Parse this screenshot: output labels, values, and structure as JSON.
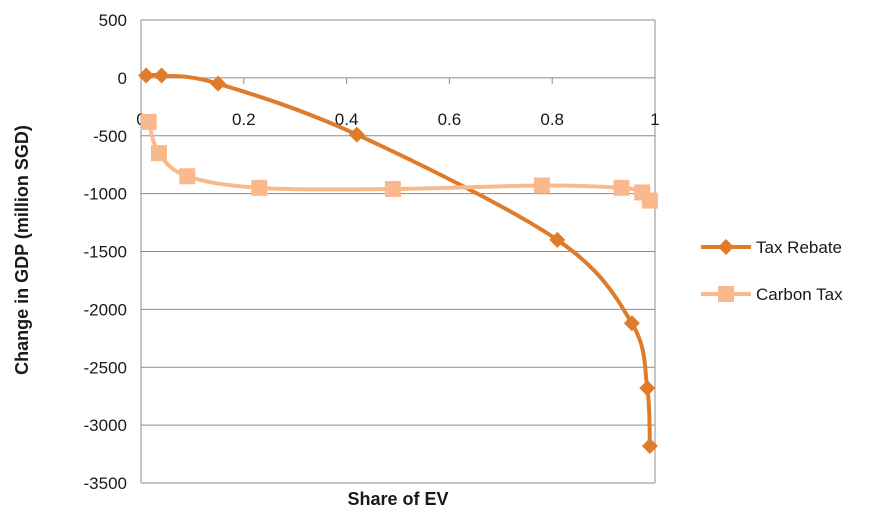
{
  "chart_data": {
    "type": "scatter",
    "xlabel": "Share of EV",
    "ylabel": "Change in GDP (million SGD)",
    "xlim": [
      0,
      1
    ],
    "ylim": [
      -3500,
      500
    ],
    "xticks": [
      "0",
      "0.2",
      "0.4",
      "0.6",
      "0.8",
      "1"
    ],
    "yticks": [
      "500",
      "0",
      "-500",
      "-1000",
      "-1500",
      "-2000",
      "-2500",
      "-3000",
      "-3500"
    ],
    "grid": "horizontal",
    "legend": "right",
    "series": [
      {
        "name": "Tax Rebate",
        "color": "#E07B2A",
        "marker": "diamond",
        "x": [
          0.01,
          0.04,
          0.15,
          0.42,
          0.81,
          0.955,
          0.985,
          0.99
        ],
        "y": [
          20,
          20,
          -50,
          -490,
          -1400,
          -2120,
          -2680,
          -3180
        ]
      },
      {
        "name": "Carbon Tax",
        "color": "#F9B98C",
        "marker": "square",
        "x": [
          0.015,
          0.035,
          0.09,
          0.23,
          0.49,
          0.78,
          0.935,
          0.975,
          0.99
        ],
        "y": [
          -380,
          -650,
          -850,
          -950,
          -960,
          -930,
          -950,
          -990,
          -1060
        ]
      }
    ]
  }
}
